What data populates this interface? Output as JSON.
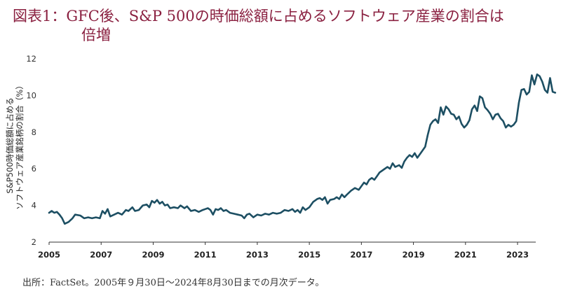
{
  "title": {
    "line1": "図表1：GFC後、S&P 500の時価総額に占めるソフトウェア産業の割合は",
    "line2": "倍増"
  },
  "source": "出所：FactSet。2005年９月30日〜2024年8月30日までの月次データ。",
  "colors": {
    "title": "#8a2040",
    "line": "#1d4f63",
    "axis": "#333333"
  },
  "chart_data": {
    "type": "line",
    "ylabel": "S&P500時価総額に占めるソフトウェア産業銘柄の割合（%）",
    "ylim": [
      2,
      12
    ],
    "xlim": [
      2005,
      2023.7
    ],
    "yticks": [
      2,
      4,
      6,
      8,
      10,
      12
    ],
    "xticks": [
      2005,
      2007,
      2009,
      2011,
      2013,
      2015,
      2017,
      2019,
      2021,
      2023
    ],
    "grid": false,
    "series": [
      {
        "points": [
          [
            2005.0,
            3.6
          ],
          [
            2005.1,
            3.7
          ],
          [
            2005.2,
            3.6
          ],
          [
            2005.3,
            3.65
          ],
          [
            2005.4,
            3.5
          ],
          [
            2005.5,
            3.3
          ],
          [
            2005.6,
            3.0
          ],
          [
            2005.75,
            3.1
          ],
          [
            2005.9,
            3.3
          ],
          [
            2006.0,
            3.5
          ],
          [
            2006.2,
            3.45
          ],
          [
            2006.35,
            3.3
          ],
          [
            2006.5,
            3.35
          ],
          [
            2006.65,
            3.3
          ],
          [
            2006.8,
            3.35
          ],
          [
            2006.95,
            3.3
          ],
          [
            2007.05,
            3.7
          ],
          [
            2007.15,
            3.55
          ],
          [
            2007.25,
            3.8
          ],
          [
            2007.35,
            3.4
          ],
          [
            2007.5,
            3.5
          ],
          [
            2007.65,
            3.6
          ],
          [
            2007.8,
            3.5
          ],
          [
            2007.95,
            3.75
          ],
          [
            2008.05,
            3.7
          ],
          [
            2008.2,
            3.9
          ],
          [
            2008.3,
            3.7
          ],
          [
            2008.45,
            3.75
          ],
          [
            2008.6,
            4.0
          ],
          [
            2008.75,
            4.05
          ],
          [
            2008.85,
            3.9
          ],
          [
            2008.95,
            4.25
          ],
          [
            2009.05,
            4.15
          ],
          [
            2009.15,
            4.3
          ],
          [
            2009.25,
            4.1
          ],
          [
            2009.35,
            4.2
          ],
          [
            2009.45,
            4.0
          ],
          [
            2009.55,
            4.05
          ],
          [
            2009.65,
            3.85
          ],
          [
            2009.8,
            3.9
          ],
          [
            2009.95,
            3.85
          ],
          [
            2010.05,
            4.0
          ],
          [
            2010.2,
            3.85
          ],
          [
            2010.3,
            3.95
          ],
          [
            2010.45,
            3.7
          ],
          [
            2010.6,
            3.75
          ],
          [
            2010.75,
            3.65
          ],
          [
            2010.9,
            3.75
          ],
          [
            2011.0,
            3.8
          ],
          [
            2011.1,
            3.85
          ],
          [
            2011.2,
            3.75
          ],
          [
            2011.3,
            3.5
          ],
          [
            2011.4,
            3.8
          ],
          [
            2011.5,
            3.75
          ],
          [
            2011.6,
            3.85
          ],
          [
            2011.7,
            3.7
          ],
          [
            2011.8,
            3.75
          ],
          [
            2011.95,
            3.6
          ],
          [
            2012.1,
            3.55
          ],
          [
            2012.25,
            3.5
          ],
          [
            2012.4,
            3.45
          ],
          [
            2012.5,
            3.3
          ],
          [
            2012.6,
            3.5
          ],
          [
            2012.7,
            3.55
          ],
          [
            2012.85,
            3.35
          ],
          [
            2013.0,
            3.5
          ],
          [
            2013.15,
            3.45
          ],
          [
            2013.3,
            3.55
          ],
          [
            2013.45,
            3.5
          ],
          [
            2013.6,
            3.6
          ],
          [
            2013.75,
            3.55
          ],
          [
            2013.9,
            3.6
          ],
          [
            2014.05,
            3.75
          ],
          [
            2014.2,
            3.7
          ],
          [
            2014.35,
            3.8
          ],
          [
            2014.45,
            3.65
          ],
          [
            2014.55,
            3.75
          ],
          [
            2014.65,
            3.6
          ],
          [
            2014.75,
            3.9
          ],
          [
            2014.85,
            3.75
          ],
          [
            2015.0,
            3.9
          ],
          [
            2015.15,
            4.2
          ],
          [
            2015.3,
            4.35
          ],
          [
            2015.4,
            4.4
          ],
          [
            2015.5,
            4.3
          ],
          [
            2015.6,
            4.45
          ],
          [
            2015.7,
            4.1
          ],
          [
            2015.8,
            4.3
          ],
          [
            2015.95,
            4.35
          ],
          [
            2016.05,
            4.45
          ],
          [
            2016.15,
            4.35
          ],
          [
            2016.25,
            4.6
          ],
          [
            2016.35,
            4.45
          ],
          [
            2016.45,
            4.6
          ],
          [
            2016.6,
            4.8
          ],
          [
            2016.75,
            4.95
          ],
          [
            2016.9,
            4.85
          ],
          [
            2017.0,
            5.05
          ],
          [
            2017.1,
            5.25
          ],
          [
            2017.2,
            5.15
          ],
          [
            2017.3,
            5.4
          ],
          [
            2017.4,
            5.5
          ],
          [
            2017.5,
            5.4
          ],
          [
            2017.6,
            5.6
          ],
          [
            2017.7,
            5.8
          ],
          [
            2017.85,
            5.95
          ],
          [
            2018.0,
            6.1
          ],
          [
            2018.1,
            6.0
          ],
          [
            2018.2,
            6.3
          ],
          [
            2018.3,
            6.1
          ],
          [
            2018.45,
            6.2
          ],
          [
            2018.55,
            6.05
          ],
          [
            2018.65,
            6.4
          ],
          [
            2018.75,
            6.6
          ],
          [
            2018.85,
            6.75
          ],
          [
            2018.95,
            6.65
          ],
          [
            2019.05,
            6.85
          ],
          [
            2019.15,
            6.6
          ],
          [
            2019.25,
            6.8
          ],
          [
            2019.35,
            7.0
          ],
          [
            2019.45,
            7.2
          ],
          [
            2019.55,
            7.85
          ],
          [
            2019.65,
            8.4
          ],
          [
            2019.75,
            8.6
          ],
          [
            2019.85,
            8.7
          ],
          [
            2019.95,
            8.5
          ],
          [
            2020.05,
            9.35
          ],
          [
            2020.15,
            8.95
          ],
          [
            2020.25,
            9.4
          ],
          [
            2020.35,
            9.25
          ],
          [
            2020.45,
            9.0
          ],
          [
            2020.55,
            8.95
          ],
          [
            2020.65,
            8.7
          ],
          [
            2020.75,
            8.85
          ],
          [
            2020.85,
            8.45
          ],
          [
            2020.95,
            8.25
          ],
          [
            2021.05,
            8.4
          ],
          [
            2021.15,
            8.65
          ],
          [
            2021.25,
            9.25
          ],
          [
            2021.35,
            9.45
          ],
          [
            2021.45,
            9.15
          ],
          [
            2021.55,
            9.95
          ],
          [
            2021.65,
            9.85
          ],
          [
            2021.75,
            9.35
          ],
          [
            2021.85,
            9.2
          ],
          [
            2021.95,
            9.0
          ],
          [
            2022.05,
            8.7
          ],
          [
            2022.15,
            8.95
          ],
          [
            2022.25,
            9.0
          ],
          [
            2022.35,
            8.75
          ],
          [
            2022.45,
            8.6
          ],
          [
            2022.55,
            8.25
          ],
          [
            2022.65,
            8.4
          ],
          [
            2022.75,
            8.3
          ],
          [
            2022.85,
            8.4
          ],
          [
            2022.95,
            8.6
          ],
          [
            2023.05,
            9.6
          ],
          [
            2023.15,
            10.3
          ],
          [
            2023.25,
            10.35
          ],
          [
            2023.35,
            10.05
          ],
          [
            2023.45,
            10.2
          ],
          [
            2023.55,
            11.1
          ],
          [
            2023.65,
            10.6
          ],
          [
            2023.75,
            11.15
          ],
          [
            2023.85,
            11.05
          ],
          [
            2023.95,
            10.75
          ],
          [
            2024.05,
            10.3
          ],
          [
            2024.15,
            10.15
          ],
          [
            2024.25,
            10.95
          ],
          [
            2024.35,
            10.2
          ],
          [
            2024.45,
            10.15
          ]
        ]
      }
    ]
  }
}
